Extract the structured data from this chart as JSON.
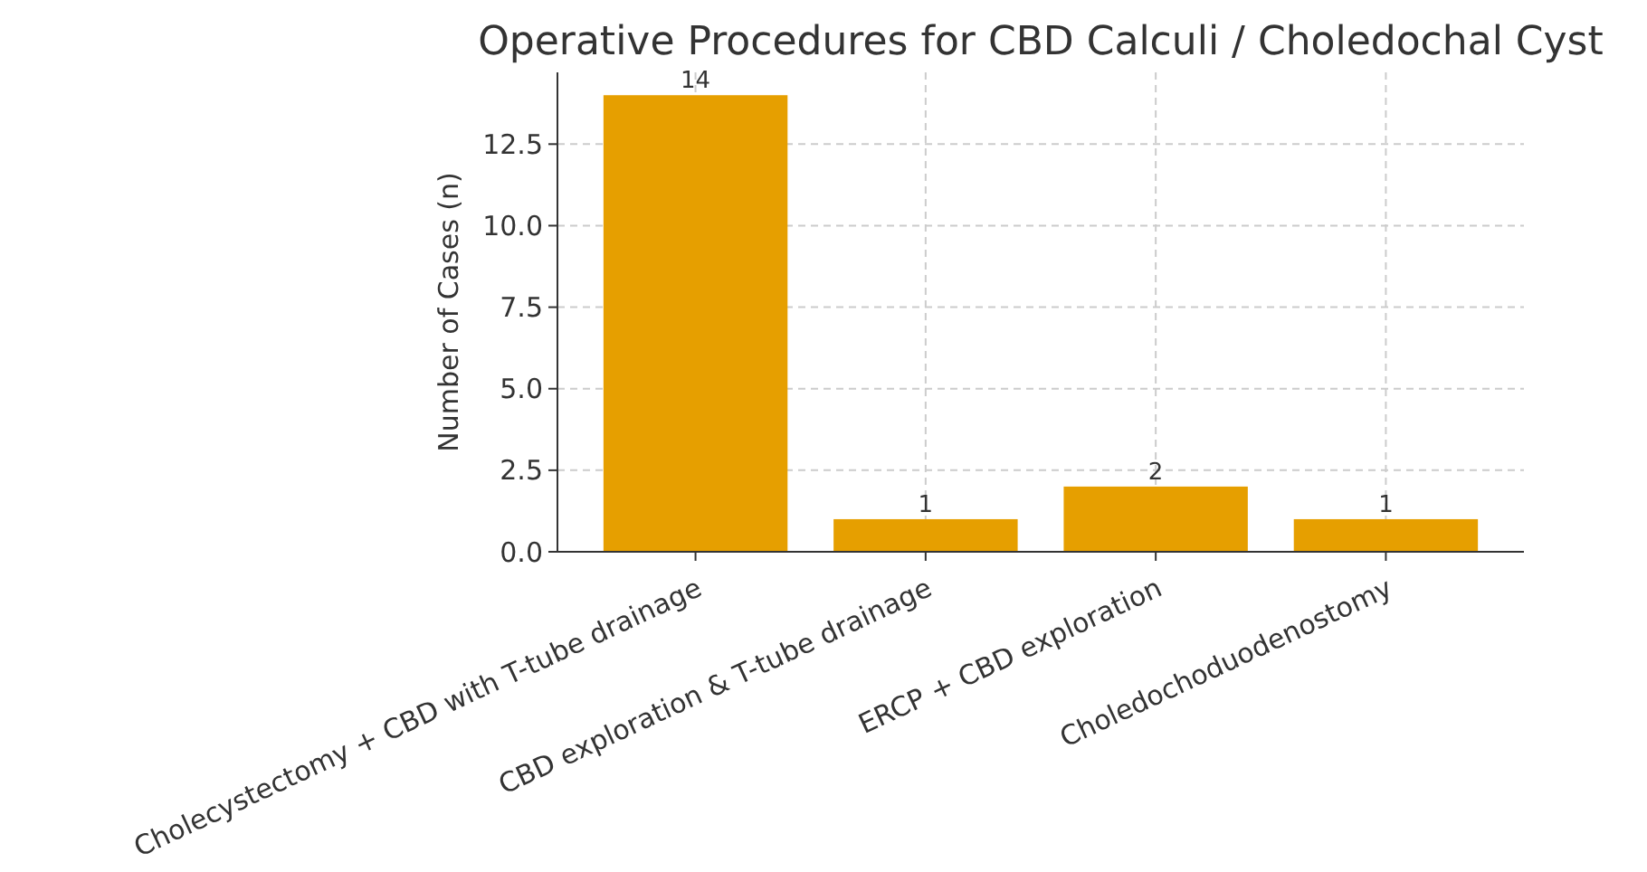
{
  "chart_data": {
    "type": "bar",
    "title": "Operative Procedures for CBD Calculi / Choledochal Cyst",
    "ylabel": "Number of Cases (n)",
    "categories": [
      "Cholecystectomy + CBD with T-tube drainage",
      "CBD exploration & T-tube drainage",
      "ERCP + CBD exploration",
      "Choledochoduodenostomy"
    ],
    "values": [
      14,
      1,
      2,
      1
    ],
    "color": "#e69f00",
    "ylim": [
      0,
      14.7
    ],
    "yticks": [
      {
        "value": 0,
        "label": "0.0"
      },
      {
        "value": 2.5,
        "label": "2.5"
      },
      {
        "value": 5,
        "label": "5.0"
      },
      {
        "value": 7.5,
        "label": "7.5"
      },
      {
        "value": 10,
        "label": "10.0"
      },
      {
        "value": 12.5,
        "label": "12.5"
      }
    ],
    "grid": true,
    "data_labels": true
  }
}
